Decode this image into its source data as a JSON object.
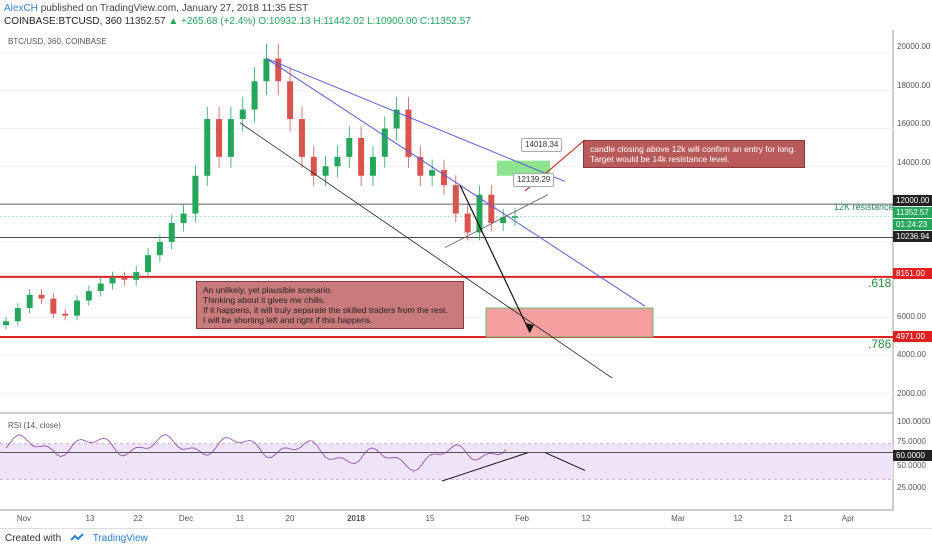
{
  "header": {
    "author": "AlexCH",
    "published": "published on TradingView.com, January 27, 2018 11:35 EST",
    "symbol": "COINBASE:BTCUSD, 360",
    "last": "11352.57",
    "change": "+265.68 (+2.4%)",
    "ohlc": "O:10932.13 H:11442.02 L:10900.00 C:11352.57"
  },
  "main_panel": {
    "title": "BTC/USD, 360, COINBASE"
  },
  "rsi_panel": {
    "title": "RSI (14, close)"
  },
  "annotations": {
    "long_note": "candle closing above 12k will confirm an entry for long.\nTarget would be 14k resistance level.",
    "short_note": "An unlikely, yet plausible scenario.\nThinking about it gives me chills.\nIf it happens, it will truly separate the skilled traders from the rest.\nI will be shorting left and right if this happens.",
    "tag_14018": "14018.34",
    "tag_12139": "12139.29",
    "resistance_label": "12K resistance",
    "fib_618": ".618",
    "fib_786": ".786"
  },
  "price_axis": {
    "ticks": [
      "20000.00",
      "18000.00",
      "16000.00",
      "14000.00",
      "6000.00",
      "4000.00",
      "2000.00"
    ],
    "labels": {
      "l12000": "12000.00",
      "l11352": "11352.57",
      "ltimer": "01:24:23",
      "l10236": "10236.94",
      "l8151": "8151.00",
      "l4971": "4971.00"
    }
  },
  "rsi_axis": {
    "ticks": [
      "100.0000",
      "75.0000",
      "50.0000",
      "25.0000"
    ],
    "label60": "60.0000"
  },
  "time_axis": [
    "Nov",
    "13",
    "22",
    "Dec",
    "11",
    "20",
    "2018",
    "15",
    "Feb",
    "12",
    "Mar",
    "12",
    "21",
    "Apr"
  ],
  "footer": {
    "created_with": "Created with",
    "brand": "TradingView"
  },
  "colors": {
    "up": "#26a65b",
    "down": "#d9534f",
    "blue_line": "#5b5bd6",
    "red_level": "#e02020",
    "rsi_line": "#8e44ad",
    "rsi_band": "#efe3f7",
    "target_box": "#f5a0a0",
    "green_box": "#7be07b"
  },
  "chart_data": {
    "type": "candlestick",
    "title": "BTC/USD, 360, COINBASE",
    "close_series": [
      [
        "Nov",
        5800
      ],
      [
        "",
        6500
      ],
      [
        "",
        7200
      ],
      [
        "",
        7000
      ],
      [
        "",
        6200
      ],
      [
        "13",
        6100
      ],
      [
        "",
        6900
      ],
      [
        "",
        7400
      ],
      [
        "",
        7800
      ],
      [
        "22",
        8100
      ],
      [
        "",
        8000
      ],
      [
        "",
        8400
      ],
      [
        "",
        9300
      ],
      [
        "",
        10000
      ],
      [
        "Dec",
        11000
      ],
      [
        "",
        11500
      ],
      [
        "",
        13500
      ],
      [
        "",
        16500
      ],
      [
        "",
        14500
      ],
      [
        "11",
        16500
      ],
      [
        "",
        17000
      ],
      [
        "",
        18500
      ],
      [
        "",
        19700
      ],
      [
        "",
        18500
      ],
      [
        "20",
        16500
      ],
      [
        "",
        14500
      ],
      [
        "",
        13500
      ],
      [
        "",
        14000
      ],
      [
        "",
        14500
      ],
      [
        "",
        15500
      ],
      [
        "",
        13500
      ],
      [
        "2018",
        14500
      ],
      [
        "",
        16000
      ],
      [
        "",
        17000
      ],
      [
        "",
        14500
      ],
      [
        "",
        13500
      ],
      [
        "",
        13800
      ],
      [
        "",
        13000
      ],
      [
        "",
        11500
      ],
      [
        "15",
        10500
      ],
      [
        "",
        12500
      ],
      [
        "",
        11000
      ],
      [
        "",
        11300
      ],
      [
        "",
        11352
      ]
    ],
    "levels": [
      {
        "name": "12K resistance",
        "value": 12000
      },
      {
        "name": "",
        "value": 10236.94
      },
      {
        "name": ".618",
        "value": 8151
      },
      {
        "name": ".786",
        "value": 4971
      }
    ],
    "ylim": [
      1000,
      21000
    ],
    "rsi": {
      "ylim": [
        0,
        100
      ],
      "level": 60,
      "band": [
        30,
        70
      ]
    }
  }
}
